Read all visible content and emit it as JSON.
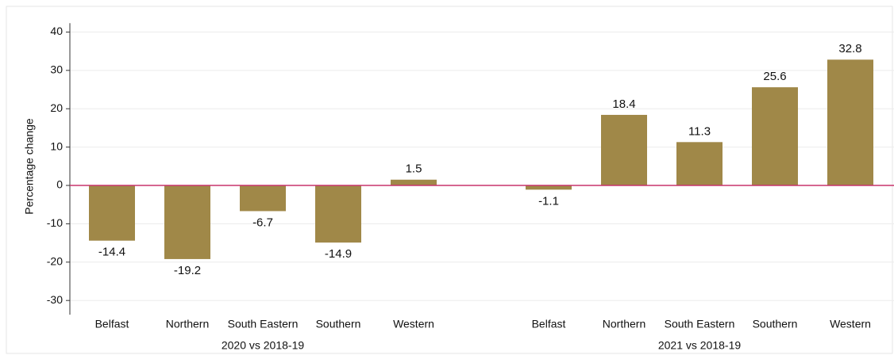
{
  "chart_data": {
    "type": "bar",
    "y_label": "Percentage change",
    "groups": [
      {
        "label": "2020 vs 2018-19",
        "categories": [
          "Belfast",
          "Northern",
          "South Eastern",
          "Southern",
          "Western"
        ],
        "values": [
          -14.4,
          -19.2,
          -6.7,
          -14.9,
          1.5
        ]
      },
      {
        "label": "2021 vs 2018-19",
        "categories": [
          "Belfast",
          "Northern",
          "South Eastern",
          "Southern",
          "Western"
        ],
        "values": [
          -1.1,
          18.4,
          11.3,
          25.6,
          32.8
        ]
      }
    ],
    "color": "#a08848",
    "zero_line_color": "#c8336b",
    "ylim": [
      -33.7,
      42.3
    ],
    "yticks": [
      -30,
      -20,
      -10,
      0,
      10,
      20,
      30,
      40
    ],
    "grid": true
  }
}
